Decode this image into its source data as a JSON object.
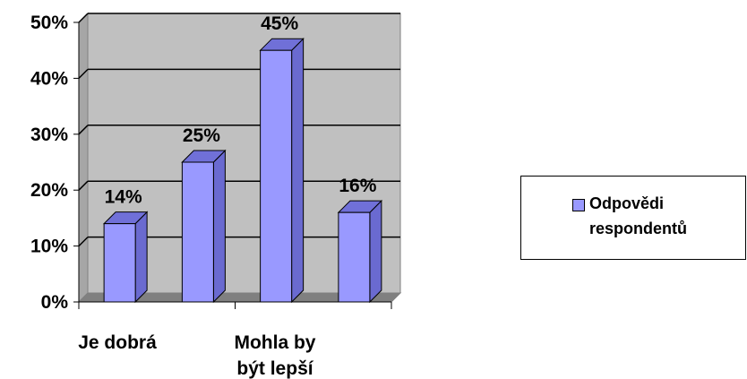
{
  "chart_data": {
    "type": "bar",
    "categories": [
      "Je dobrá",
      "",
      "Mohla by\nbýt lepší",
      ""
    ],
    "series": [
      {
        "name": "Odpovědi respondentů",
        "values": [
          0.14,
          0.25,
          0.45,
          0.16
        ],
        "color": "#9999ff"
      }
    ],
    "data_labels": [
      "14%",
      "25%",
      "45%",
      "16%"
    ],
    "y_ticks": [
      "0%",
      "10%",
      "20%",
      "30%",
      "40%",
      "50%"
    ],
    "ylim": [
      0,
      0.5
    ],
    "grid": true,
    "three_d": true,
    "legend": {
      "position": "right",
      "lines": [
        "Odpovědi",
        "respondentů"
      ]
    },
    "plot_background": "#c0c0c0"
  }
}
